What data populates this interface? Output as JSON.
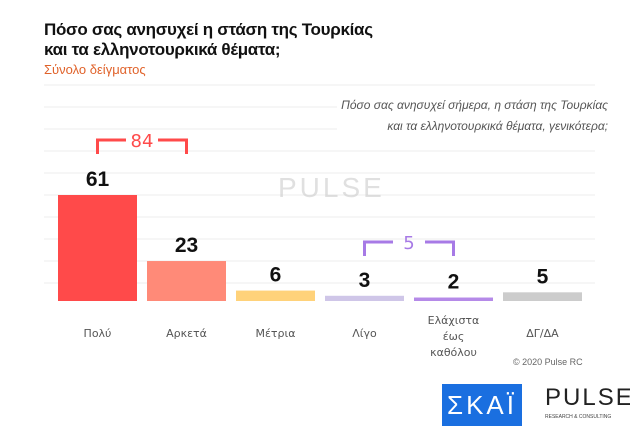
{
  "chart_data": {
    "type": "bar",
    "title": "Πόσο σας ανησυχεί η στάση της Τουρκίας και τα ελληνοτουρκικά θέματα;",
    "title_lines": [
      "Πόσο σας ανησυχεί η στάση της Τουρκίας",
      "και τα ελληνοτουρκικά θέματα;"
    ],
    "subtitle": "Σύνολο δείγματος",
    "question_lines": [
      "Πόσο σας ανησυχεί σήμερα, η στάση της Τουρκίας",
      "και τα ελληνοτουρκικά θέματα, γενικότερα;"
    ],
    "categories": [
      [
        "Πολύ"
      ],
      [
        "Αρκετά"
      ],
      [
        "Μέτρια"
      ],
      [
        "Λίγο"
      ],
      [
        "Ελάχιστα",
        "έως",
        "καθόλου"
      ],
      [
        "ΔΓ/ΔΑ"
      ]
    ],
    "values": [
      61,
      23,
      6,
      3,
      2,
      5
    ],
    "colors": [
      "#ff4a4a",
      "#ff8a78",
      "#ffd27a",
      "#cfc6e8",
      "#b58ae8",
      "#cccccc"
    ],
    "groups": [
      {
        "label": "84",
        "from": 0,
        "to": 1,
        "color": "#ff4a4a"
      },
      {
        "label": "5",
        "from": 3,
        "to": 4,
        "color": "#a77ae6"
      }
    ],
    "ylim": [
      0,
      70
    ],
    "grid": true
  },
  "footer": {
    "copyright": "© 2020 Pulse RC",
    "skai_logo": "ΣΚΑΪ",
    "pulse_logo": "PULSE",
    "pulse_tagline": "RESEARCH & CONSULTING"
  },
  "watermark": "PULSE"
}
